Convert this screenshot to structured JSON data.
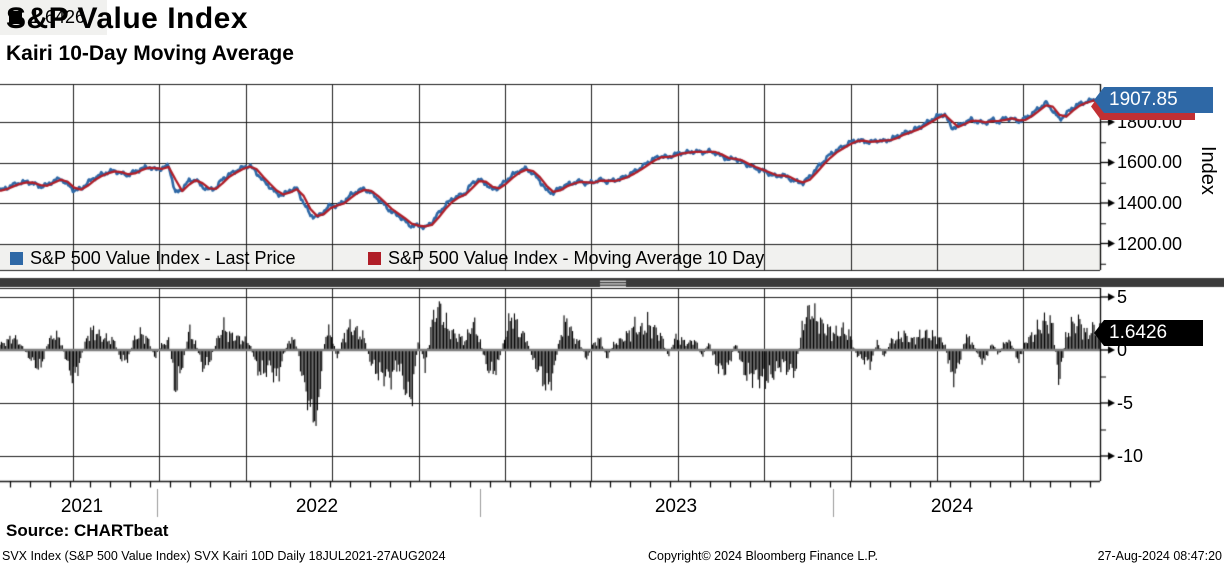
{
  "header": {
    "title": "S&P Value Index",
    "subtitle": "Kairi 10-Day Moving Average"
  },
  "top_chart": {
    "legend": [
      {
        "label": "S&P 500 Value Index - Last Price",
        "color": "#2E68A6"
      },
      {
        "label": "S&P 500 Value Index - Moving Average 10 Day",
        "color": "#B01E28"
      }
    ],
    "axis_label": "Index",
    "ytick_labels": [
      "1800.00",
      "1600.00",
      "1400.00",
      "1200.00"
    ],
    "callout": {
      "value": "1907.85",
      "color": "#2E68A6"
    }
  },
  "bottom_chart": {
    "legend": {
      "label": "1.6426",
      "color": "#000000"
    },
    "ytick_labels": [
      "5",
      "0",
      "-5",
      "-10"
    ],
    "callout": {
      "value": "1.6426",
      "color": "#000000"
    }
  },
  "x_axis": {
    "year_labels": [
      "2021",
      "2022",
      "2023",
      "2024"
    ]
  },
  "source": "Source: CHARTbeat",
  "footer": {
    "left": "SVX Index (S&P 500 Value Index) SVX Kairi 10D  Daily 18JUL2021-27AUG2024",
    "center": "Copyright© 2024 Bloomberg Finance L.P.",
    "right": "27-Aug-2024 08:47:20"
  },
  "chart_data": {
    "type": "line+bar",
    "x": {
      "start_label": "18JUL2021",
      "end_label": "27AUG2024",
      "sampling": "weekly",
      "n_points": 164,
      "year_labels": [
        "2021",
        "2022",
        "2023",
        "2024"
      ]
    },
    "panels": [
      {
        "type": "line",
        "ylabel": "Index",
        "ylim": [
          1115,
          1988
        ],
        "yticks": [
          1200,
          1400,
          1600,
          1800
        ],
        "yticks_minor": [
          1100,
          1300,
          1500,
          1700,
          1900
        ],
        "grid": true,
        "last_value": 1907.85,
        "series": [
          {
            "name": "S&P 500 Value Index - Last Price",
            "color": "#2E68A6",
            "values": [
              1460,
              1475,
              1490,
              1500,
              1505,
              1495,
              1480,
              1490,
              1510,
              1520,
              1490,
              1462,
              1470,
              1500,
              1525,
              1540,
              1552,
              1560,
              1545,
              1538,
              1555,
              1570,
              1578,
              1565,
              1572,
              1585,
              1448,
              1470,
              1510,
              1515,
              1480,
              1465,
              1475,
              1520,
              1540,
              1560,
              1575,
              1585,
              1550,
              1510,
              1480,
              1445,
              1440,
              1465,
              1470,
              1400,
              1340,
              1330,
              1360,
              1390,
              1385,
              1410,
              1440,
              1460,
              1470,
              1450,
              1420,
              1390,
              1355,
              1340,
              1310,
              1285,
              1290,
              1278,
              1305,
              1350,
              1390,
              1420,
              1435,
              1450,
              1500,
              1515,
              1495,
              1465,
              1480,
              1510,
              1540,
              1560,
              1570,
              1545,
              1510,
              1460,
              1450,
              1475,
              1490,
              1500,
              1508,
              1495,
              1505,
              1515,
              1505,
              1512,
              1520,
              1535,
              1555,
              1575,
              1600,
              1620,
              1632,
              1625,
              1640,
              1648,
              1650,
              1655,
              1650,
              1655,
              1648,
              1630,
              1615,
              1620,
              1600,
              1585,
              1570,
              1560,
              1545,
              1530,
              1540,
              1520,
              1505,
              1500,
              1530,
              1570,
              1605,
              1640,
              1660,
              1680,
              1700,
              1710,
              1705,
              1700,
              1710,
              1705,
              1715,
              1730,
              1745,
              1755,
              1770,
              1790,
              1810,
              1830,
              1840,
              1770,
              1780,
              1800,
              1812,
              1800,
              1795,
              1812,
              1800,
              1820,
              1815,
              1802,
              1820,
              1842,
              1870,
              1895,
              1858,
              1812,
              1840,
              1872,
              1890,
              1900,
              1910,
              1907.85
            ]
          },
          {
            "name": "S&P 500 Value Index - Moving Average 10 Day",
            "color": "#B01E28",
            "values": [
              1460,
              1468,
              1482,
              1495,
              1502,
              1500,
              1488,
              1485,
              1500,
              1515,
              1505,
              1476,
              1466,
              1485,
              1512,
              1532,
              1546,
              1556,
              1552,
              1542,
              1546,
              1562,
              1574,
              1572,
              1568,
              1578,
              1516,
              1459,
              1490,
              1512,
              1498,
              1472,
              1470,
              1498,
              1530,
              1550,
              1568,
              1580,
              1568,
              1530,
              1495,
              1462,
              1442,
              1452,
              1468,
              1435,
              1370,
              1335,
              1345,
              1375,
              1388,
              1398,
              1425,
              1450,
              1465,
              1460,
              1435,
              1405,
              1372,
              1348,
              1325,
              1298,
              1288,
              1284,
              1292,
              1328,
              1370,
              1405,
              1428,
              1442,
              1475,
              1508,
              1505,
              1480,
              1472,
              1495,
              1525,
              1550,
              1565,
              1558,
              1528,
              1485,
              1455,
              1462,
              1482,
              1495,
              1504,
              1502,
              1500,
              1510,
              1510,
              1508,
              1516,
              1528,
              1545,
              1565,
              1588,
              1610,
              1626,
              1628,
              1632,
              1644,
              1649,
              1652,
              1652,
              1652,
              1652,
              1639,
              1622,
              1618,
              1610,
              1592,
              1578,
              1565,
              1552,
              1538,
              1535,
              1530,
              1512,
              1502,
              1515,
              1550,
              1588,
              1622,
              1650,
              1670,
              1690,
              1705,
              1708,
              1702,
              1705,
              1708,
              1710,
              1722,
              1738,
              1750,
              1762,
              1780,
              1800,
              1820,
              1835,
              1805,
              1775,
              1790,
              1806,
              1806,
              1798,
              1804,
              1806,
              1810,
              1818,
              1808,
              1811,
              1831,
              1856,
              1882,
              1876,
              1835,
              1826,
              1856,
              1881,
              1895,
              1905,
              1909
            ]
          }
        ]
      },
      {
        "type": "bar",
        "ylabel": "",
        "ylim": [
          -12.4,
          5.9
        ],
        "yticks": [
          5,
          0,
          -5,
          -10
        ],
        "yticks_minor": [
          2.5,
          -2.5,
          -7.5
        ],
        "grid": true,
        "last_value": 1.6426,
        "series": [
          {
            "name": "SVX Kairi 10D",
            "color": "#000000",
            "values": [
              0.5,
              0.8,
              1.2,
              0.6,
              -0.4,
              -1.2,
              -1.8,
              0.6,
              1.4,
              1.0,
              -1.5,
              -2.6,
              -0.8,
              1.5,
              1.8,
              1.2,
              1.0,
              0.8,
              -1.0,
              -0.8,
              1.2,
              1.5,
              0.9,
              -0.7,
              0.5,
              0.9,
              -3.8,
              -1.5,
              1.8,
              0.6,
              -1.6,
              -1.2,
              0.6,
              2.2,
              1.4,
              1.2,
              0.9,
              0.7,
              -1.6,
              -2.2,
              -1.4,
              -2.8,
              -0.6,
              1.2,
              0.5,
              -3.2,
              -5.5,
              -6.9,
              1.0,
              1.8,
              -0.9,
              1.4,
              2.2,
              1.6,
              1.1,
              -1.3,
              -2.1,
              -2.4,
              -2.6,
              -1.2,
              -3.6,
              -4.7,
              0.8,
              -1.5,
              2.5,
              4.2,
              2.4,
              1.6,
              1.2,
              0.8,
              2.6,
              1.2,
              -1.4,
              -2.2,
              -1.0,
              1.8,
              3.3,
              1.6,
              1.2,
              -1.1,
              -2.0,
              -3.5,
              -2.4,
              1.4,
              2.8,
              1.2,
              0.6,
              -0.9,
              0.7,
              1.0,
              -0.8,
              0.6,
              0.9,
              1.4,
              2.2,
              1.8,
              2.4,
              1.9,
              1.3,
              -0.6,
              1.1,
              0.9,
              0.6,
              1.0,
              -0.7,
              0.8,
              -1.2,
              -2.0,
              -1.6,
              0.9,
              -1.8,
              -2.4,
              -2.4,
              -2.8,
              -2.6,
              -1.9,
              -1.2,
              -2.0,
              -1.8,
              2.6,
              3.8,
              2.9,
              2.2,
              1.8,
              1.5,
              1.9,
              1.2,
              -0.5,
              -0.9,
              -1.3,
              0.7,
              -0.6,
              0.8,
              1.1,
              1.4,
              0.9,
              1.2,
              1.5,
              1.3,
              1.1,
              0.7,
              -2.6,
              -1.8,
              1.2,
              0.9,
              -0.7,
              -1.1,
              0.8,
              -0.6,
              1.0,
              0.5,
              -1.2,
              0.9,
              1.3,
              2.1,
              2.8,
              2.2,
              -3.1,
              1.5,
              2.4,
              2.6,
              1.4,
              2.0,
              1.6426
            ]
          }
        ]
      }
    ]
  }
}
